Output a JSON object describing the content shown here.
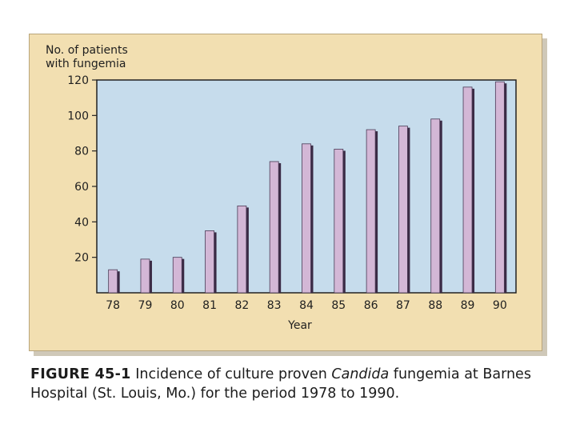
{
  "chart_data": {
    "type": "bar",
    "ylabel_lines": [
      "No. of patients",
      "with fungemia"
    ],
    "xlabel": "Year",
    "categories": [
      "78",
      "79",
      "80",
      "81",
      "82",
      "83",
      "84",
      "85",
      "86",
      "87",
      "88",
      "89",
      "90"
    ],
    "values": [
      13,
      19,
      20,
      35,
      49,
      74,
      84,
      81,
      92,
      94,
      98,
      116,
      119
    ],
    "ylim": [
      0,
      120
    ],
    "yticks": [
      "20",
      "40",
      "60",
      "80",
      "100",
      "120"
    ],
    "grid": false,
    "colors": {
      "panel": "#f2dfb1",
      "plot_area": "#c6dcec",
      "bar_face": "#d3b7d6",
      "bar_shadow": "#3a2a45",
      "axis": "#222222"
    }
  },
  "caption": {
    "label": "FIGURE 45-1",
    "text_before": " Incidence of culture proven ",
    "italic": "Candida",
    "text_after": " fungemia at Barnes Hospital (St. Louis, Mo.) for the period 1978 to 1990."
  }
}
